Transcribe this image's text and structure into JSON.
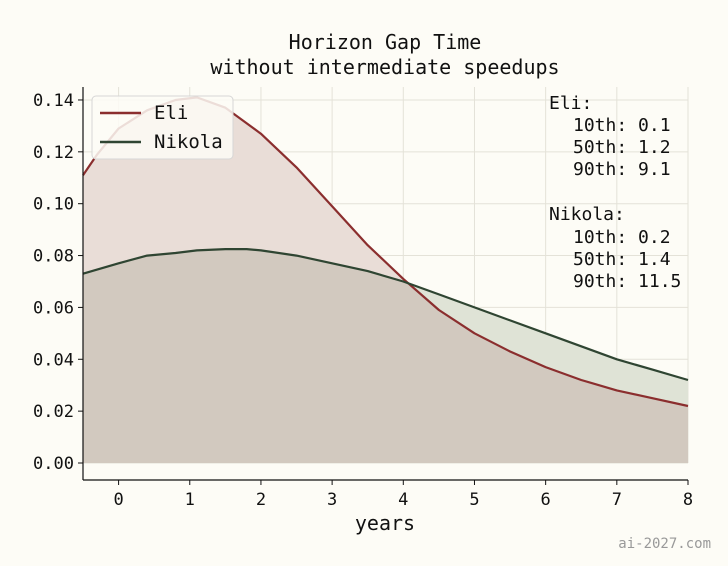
{
  "chart_data": {
    "type": "area",
    "title": "Horizon Gap Time",
    "subtitle": "without intermediate speedups",
    "xlabel": "years",
    "ylabel": "",
    "xlim": [
      -0.5,
      8
    ],
    "ylim": [
      0,
      0.145
    ],
    "x_ticks": [
      "0",
      "1",
      "2",
      "3",
      "4",
      "5",
      "6",
      "7",
      "8"
    ],
    "y_ticks": [
      "0.00",
      "0.02",
      "0.04",
      "0.06",
      "0.08",
      "0.10",
      "0.12",
      "0.14"
    ],
    "grid": true,
    "legend_position": "top-left",
    "series": [
      {
        "name": "Eli",
        "color": "#8b2e2e",
        "fill": "#e9ddd7",
        "x": [
          -0.5,
          -0.3,
          0,
          0.4,
          0.8,
          1.1,
          1.5,
          2.0,
          2.5,
          3.0,
          3.5,
          4.0,
          4.5,
          5.0,
          5.5,
          6.0,
          6.5,
          7.0,
          7.5,
          8.0
        ],
        "values": [
          0.111,
          0.119,
          0.129,
          0.136,
          0.14,
          0.141,
          0.137,
          0.127,
          0.114,
          0.099,
          0.084,
          0.071,
          0.059,
          0.05,
          0.043,
          0.037,
          0.032,
          0.028,
          0.025,
          0.022
        ]
      },
      {
        "name": "Nikola",
        "color": "#2f4532",
        "fill": "#dfe3d6",
        "x": [
          -0.5,
          0,
          0.4,
          0.8,
          1.1,
          1.5,
          1.8,
          2.0,
          2.5,
          3.0,
          3.5,
          4.0,
          4.5,
          5.0,
          5.5,
          6.0,
          6.5,
          7.0,
          7.5,
          8.0
        ],
        "values": [
          0.073,
          0.077,
          0.08,
          0.081,
          0.082,
          0.0825,
          0.0825,
          0.082,
          0.08,
          0.077,
          0.074,
          0.07,
          0.065,
          0.06,
          0.055,
          0.05,
          0.045,
          0.04,
          0.036,
          0.032
        ]
      }
    ],
    "overlap_fill": "#d2c9bf",
    "annotations": {
      "eli_header": "Eli:",
      "eli_p10": "10th: 0.1",
      "eli_p50": "50th: 1.2",
      "eli_p90": "90th: 9.1",
      "nikola_header": "Nikola:",
      "nikola_p10": "10th: 0.2",
      "nikola_p50": "50th: 1.4",
      "nikola_p90": "90th: 11.5"
    }
  },
  "watermark": "ai-2027.com"
}
